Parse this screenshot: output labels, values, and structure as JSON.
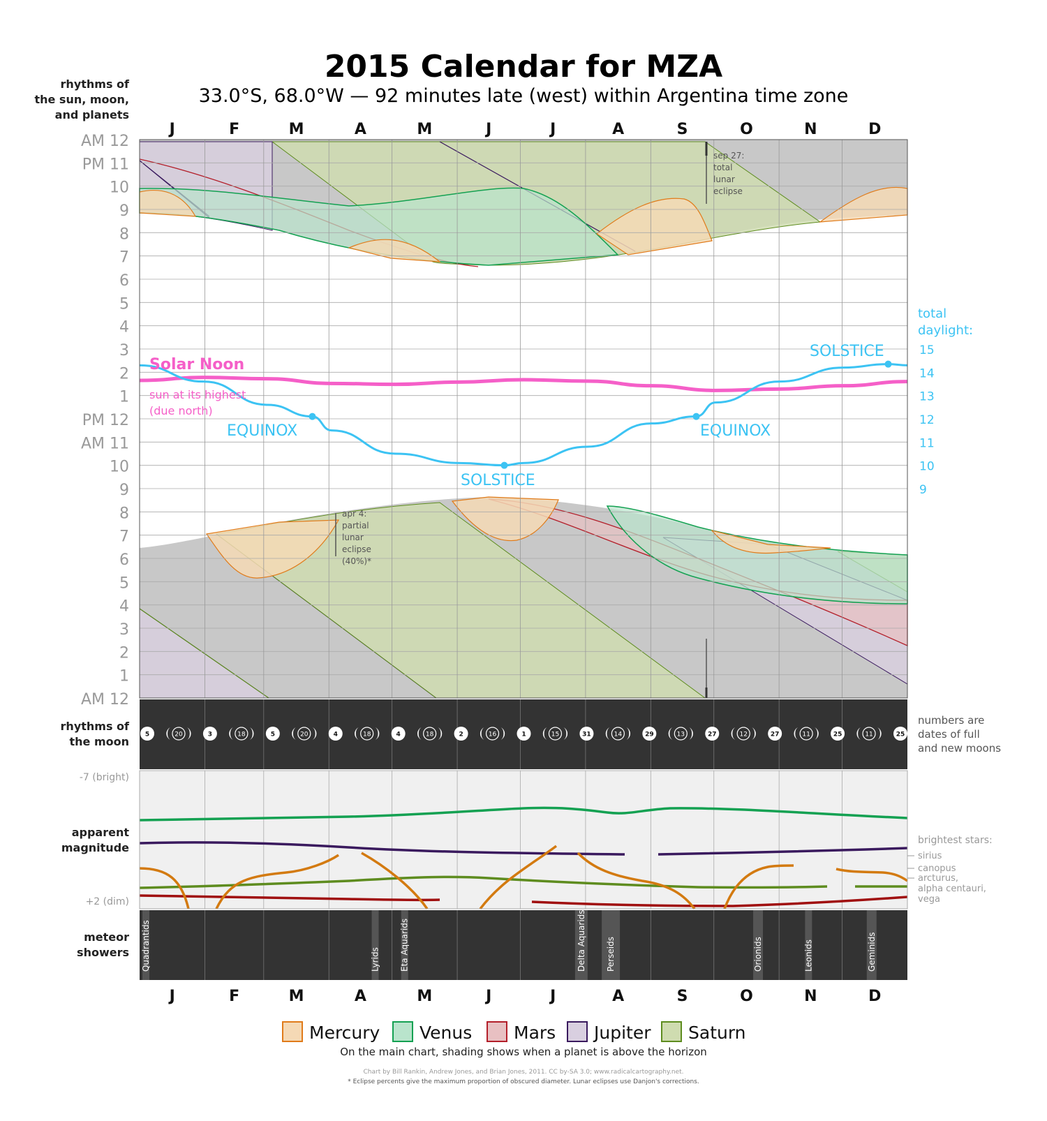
{
  "title": "2015 Calendar for MZA",
  "subtitle": "33.0°S, 68.0°W — 92 minutes late (west) within Argentina time zone",
  "left_labels": {
    "sun_moon_planets": [
      "rhythms of",
      "the sun, moon,",
      "and planets"
    ],
    "moon": [
      "rhythms of",
      "the moon"
    ],
    "magnitude": [
      "apparent",
      "magnitude"
    ],
    "meteor": [
      "meteor",
      "showers"
    ]
  },
  "months": [
    "J",
    "F",
    "M",
    "A",
    "M",
    "J",
    "J",
    "A",
    "S",
    "O",
    "N",
    "D"
  ],
  "hour_labels": [
    "AM 12",
    "PM 11",
    "10",
    "9",
    "8",
    "7",
    "6",
    "5",
    "4",
    "3",
    "2",
    "1",
    "PM 12",
    "AM 11",
    "10",
    "9",
    "8",
    "7",
    "6",
    "5",
    "4",
    "3",
    "2",
    "1",
    "AM 12"
  ],
  "daylight": {
    "header": [
      "total",
      "daylight:"
    ],
    "ticks": [
      "15",
      "14",
      "13",
      "12",
      "11",
      "10",
      "9"
    ],
    "color": "#3cc3f3"
  },
  "labels": {
    "solar_noon": "Solar Noon",
    "solar_noon_sub": [
      "sun at its highest",
      "(due north)"
    ],
    "equinox": "EQUINOX",
    "solstice": "SOLSTICE"
  },
  "eclipses": [
    {
      "lines": [
        "sep 27:",
        "total",
        "lunar",
        "eclipse"
      ]
    },
    {
      "lines": [
        "apr 4:",
        "partial",
        "lunar",
        "eclipse",
        "(40%)*"
      ]
    }
  ],
  "moon_phases": {
    "note": [
      "numbers are",
      "dates of full",
      "and new moons"
    ],
    "dates": [
      "5",
      "20",
      "3",
      "18",
      "5",
      "20",
      "4",
      "18",
      "4",
      "18",
      "2",
      "16",
      "1",
      "15",
      "31",
      "14",
      "29",
      "13",
      "27",
      "12",
      "27",
      "11",
      "25",
      "11",
      "25"
    ],
    "types": [
      "full",
      "new",
      "full",
      "new",
      "full",
      "new",
      "full",
      "new",
      "full",
      "new",
      "full",
      "new",
      "full",
      "new",
      "full",
      "new",
      "full",
      "new",
      "full",
      "new",
      "full",
      "new",
      "full",
      "new",
      "full"
    ]
  },
  "magnitude": {
    "top_label": "-7 (bright)",
    "bottom_label": "+2 (dim)",
    "stars_header": "brightest stars:",
    "stars": [
      "sirius",
      "canopus",
      "arcturus,",
      "alpha centauri,",
      "vega"
    ]
  },
  "meteor_showers": [
    "Quadrantids",
    "Lyrids",
    "Eta Aquarids",
    "Delta Aquarids",
    "Perseids",
    "Orionids",
    "Leonids",
    "Geminids"
  ],
  "legend": {
    "items": [
      {
        "name": "Mercury",
        "fill": "#f5d9b5",
        "stroke": "#e07b1a"
      },
      {
        "name": "Venus",
        "fill": "#b9e4cc",
        "stroke": "#14a152"
      },
      {
        "name": "Mars",
        "fill": "#e8c0c2",
        "stroke": "#b31f2a"
      },
      {
        "name": "Jupiter",
        "fill": "#d9cfe0",
        "stroke": "#3a1a5e"
      },
      {
        "name": "Saturn",
        "fill": "#cfdcb0",
        "stroke": "#5e8c1f"
      }
    ],
    "note": "On the main chart, shading shows when a planet is above the horizon"
  },
  "credits": [
    "Chart by Bill Rankin, Andrew Jones, and Brian Jones, 2011. CC by-SA 3.0; www.radicalcartography.net.",
    "* Eclipse percents give the maximum proportion of obscured diameter. Lunar eclipses use Danjon's corrections."
  ],
  "chart_data": {
    "type": "line",
    "x_axis": "months of 2015",
    "y_axis": "time of day (AM 12 to AM 12)",
    "series": [
      {
        "name": "Solar Noon",
        "color": "#f55fc8",
        "x_months": [
          0,
          1,
          2,
          3,
          4,
          5,
          6,
          7,
          8,
          9,
          10,
          11,
          12
        ],
        "hours": [
          13.65,
          13.78,
          13.72,
          13.52,
          13.48,
          13.58,
          13.68,
          13.62,
          13.42,
          13.22,
          13.28,
          13.42,
          13.6
        ]
      },
      {
        "name": "total daylight",
        "color": "#3cc3f3",
        "x_months": [
          0,
          1,
          2,
          2.7,
          3,
          4,
          5,
          5.7,
          6,
          7,
          8,
          8.7,
          9,
          10,
          11,
          11.7,
          12
        ],
        "hours": [
          14.3,
          13.6,
          12.6,
          12.1,
          11.5,
          10.5,
          10.1,
          10.0,
          10.1,
          10.8,
          11.8,
          12.1,
          12.7,
          13.6,
          14.2,
          14.35,
          14.3
        ]
      }
    ]
  }
}
